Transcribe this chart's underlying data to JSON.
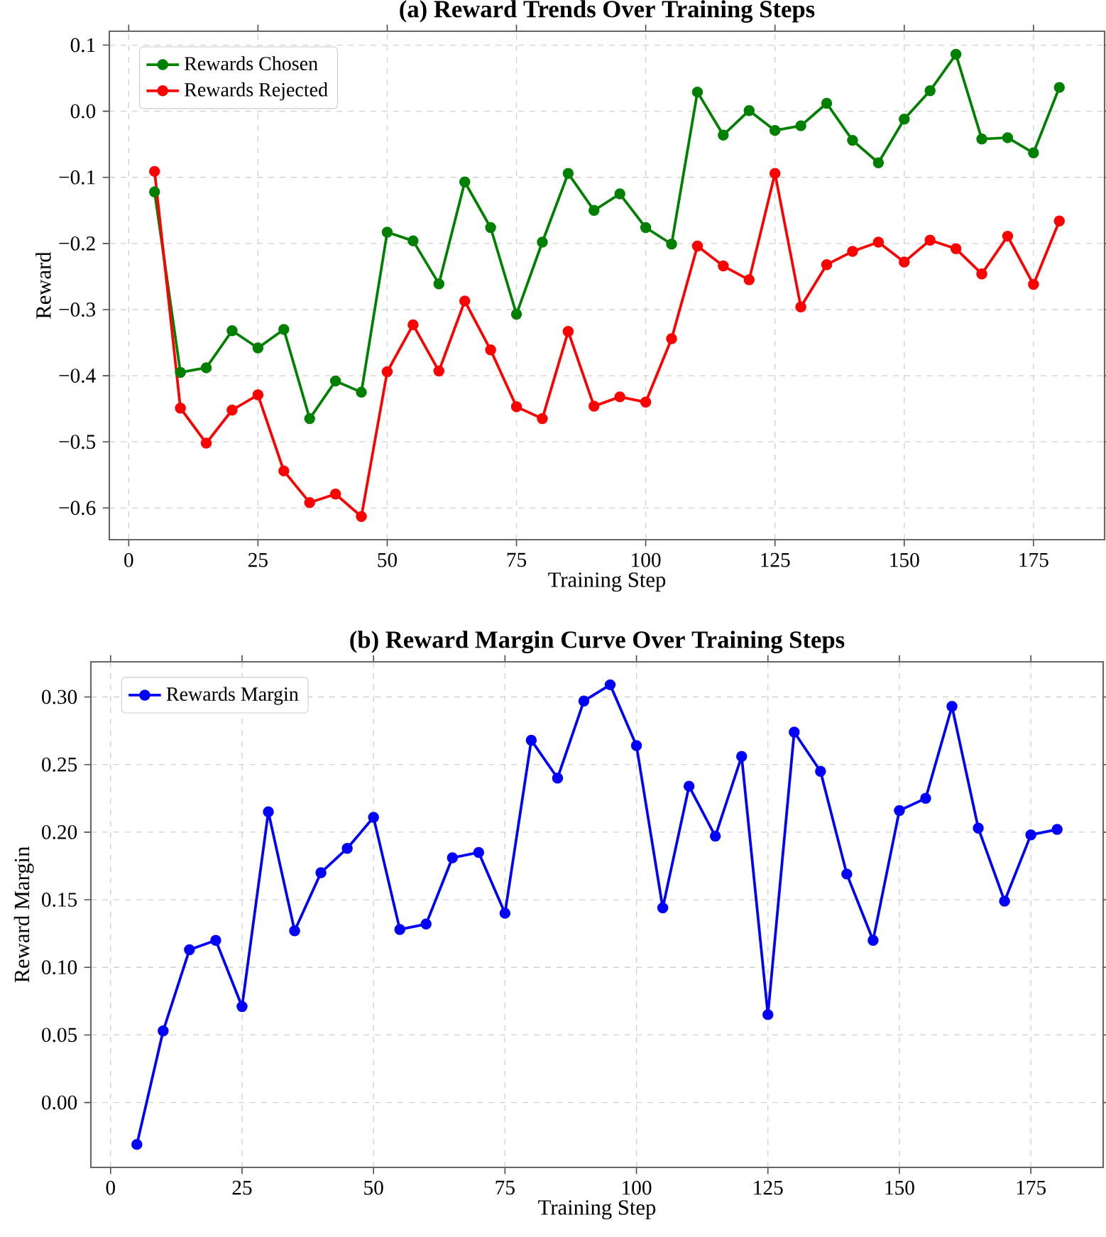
{
  "chart_data": [
    {
      "type": "line",
      "title": "(a) Reward Trends Over Training Steps",
      "xlabel": "Training Step",
      "ylabel": "Reward",
      "x": [
        5,
        10,
        15,
        20,
        25,
        30,
        35,
        40,
        45,
        50,
        55,
        60,
        65,
        70,
        75,
        80,
        85,
        90,
        95,
        100,
        105,
        110,
        115,
        120,
        125,
        130,
        135,
        140,
        145,
        150,
        155,
        160,
        165,
        170,
        175,
        180
      ],
      "series": [
        {
          "name": "Rewards Chosen",
          "color": "#008000",
          "values": [
            -0.122,
            -0.395,
            -0.388,
            -0.332,
            -0.358,
            -0.33,
            -0.465,
            -0.408,
            -0.425,
            -0.183,
            -0.196,
            -0.261,
            -0.107,
            -0.176,
            -0.307,
            -0.198,
            -0.094,
            -0.15,
            -0.125,
            -0.176,
            -0.201,
            0.029,
            -0.036,
            0.001,
            -0.029,
            -0.022,
            0.012,
            -0.044,
            -0.078,
            -0.012,
            0.031,
            0.086,
            -0.042,
            -0.04,
            -0.063,
            0.036
          ]
        },
        {
          "name": "Rewards Rejected",
          "color": "#ff0000",
          "values": [
            -0.091,
            -0.449,
            -0.502,
            -0.452,
            -0.429,
            -0.544,
            -0.592,
            -0.579,
            -0.613,
            -0.394,
            -0.323,
            -0.393,
            -0.287,
            -0.361,
            -0.447,
            -0.465,
            -0.333,
            -0.446,
            -0.432,
            -0.44,
            -0.344,
            -0.204,
            -0.234,
            -0.255,
            -0.094,
            -0.296,
            -0.232,
            -0.212,
            -0.198,
            -0.228,
            -0.195,
            -0.208,
            -0.246,
            -0.189,
            -0.262,
            -0.166
          ]
        }
      ],
      "xlim": [
        -3.75,
        188.75
      ],
      "ylim": [
        -0.648,
        0.121
      ],
      "xticks": [
        0,
        25,
        50,
        75,
        100,
        125,
        150,
        175
      ],
      "yticks": [
        {
          "value": -0.6,
          "label": "−0.6"
        },
        {
          "value": -0.5,
          "label": "−0.5"
        },
        {
          "value": -0.4,
          "label": "−0.4"
        },
        {
          "value": -0.3,
          "label": "−0.3"
        },
        {
          "value": -0.2,
          "label": "−0.2"
        },
        {
          "value": -0.1,
          "label": "−0.1"
        },
        {
          "value": 0,
          "label": "0.0"
        },
        {
          "value": 0.1,
          "label": "0.1"
        }
      ],
      "grid": true,
      "legend": "top left",
      "marker": "circle",
      "line_style": "solid"
    },
    {
      "type": "line",
      "title": "(b) Reward Margin Curve Over Training Steps",
      "xlabel": "Training Step",
      "ylabel": "Reward Margin",
      "x": [
        5,
        10,
        15,
        20,
        25,
        30,
        35,
        40,
        45,
        50,
        55,
        60,
        65,
        70,
        75,
        80,
        85,
        90,
        95,
        100,
        105,
        110,
        115,
        120,
        125,
        130,
        135,
        140,
        145,
        150,
        155,
        160,
        165,
        170,
        175,
        180
      ],
      "series": [
        {
          "name": "Rewards Margin",
          "color": "#0000ff",
          "values": [
            -0.031,
            0.053,
            0.113,
            0.12,
            0.071,
            0.215,
            0.127,
            0.17,
            0.188,
            0.211,
            0.128,
            0.132,
            0.181,
            0.185,
            0.14,
            0.268,
            0.24,
            0.297,
            0.309,
            0.264,
            0.144,
            0.234,
            0.197,
            0.256,
            0.065,
            0.274,
            0.245,
            0.169,
            0.12,
            0.216,
            0.225,
            0.293,
            0.203,
            0.149,
            0.198,
            0.202
          ]
        }
      ],
      "xlim": [
        -3.75,
        188.75
      ],
      "ylim": [
        -0.048,
        0.326
      ],
      "xticks": [
        0,
        25,
        50,
        75,
        100,
        125,
        150,
        175
      ],
      "yticks": [
        {
          "value": 0,
          "label": "0.00"
        },
        {
          "value": 0.05,
          "label": "0.05"
        },
        {
          "value": 0.1,
          "label": "0.10"
        },
        {
          "value": 0.15,
          "label": "0.15"
        },
        {
          "value": 0.2,
          "label": "0.20"
        },
        {
          "value": 0.25,
          "label": "0.25"
        },
        {
          "value": 0.3,
          "label": "0.30"
        }
      ],
      "grid": true,
      "legend": "top left",
      "marker": "circle",
      "line_style": "solid"
    }
  ]
}
